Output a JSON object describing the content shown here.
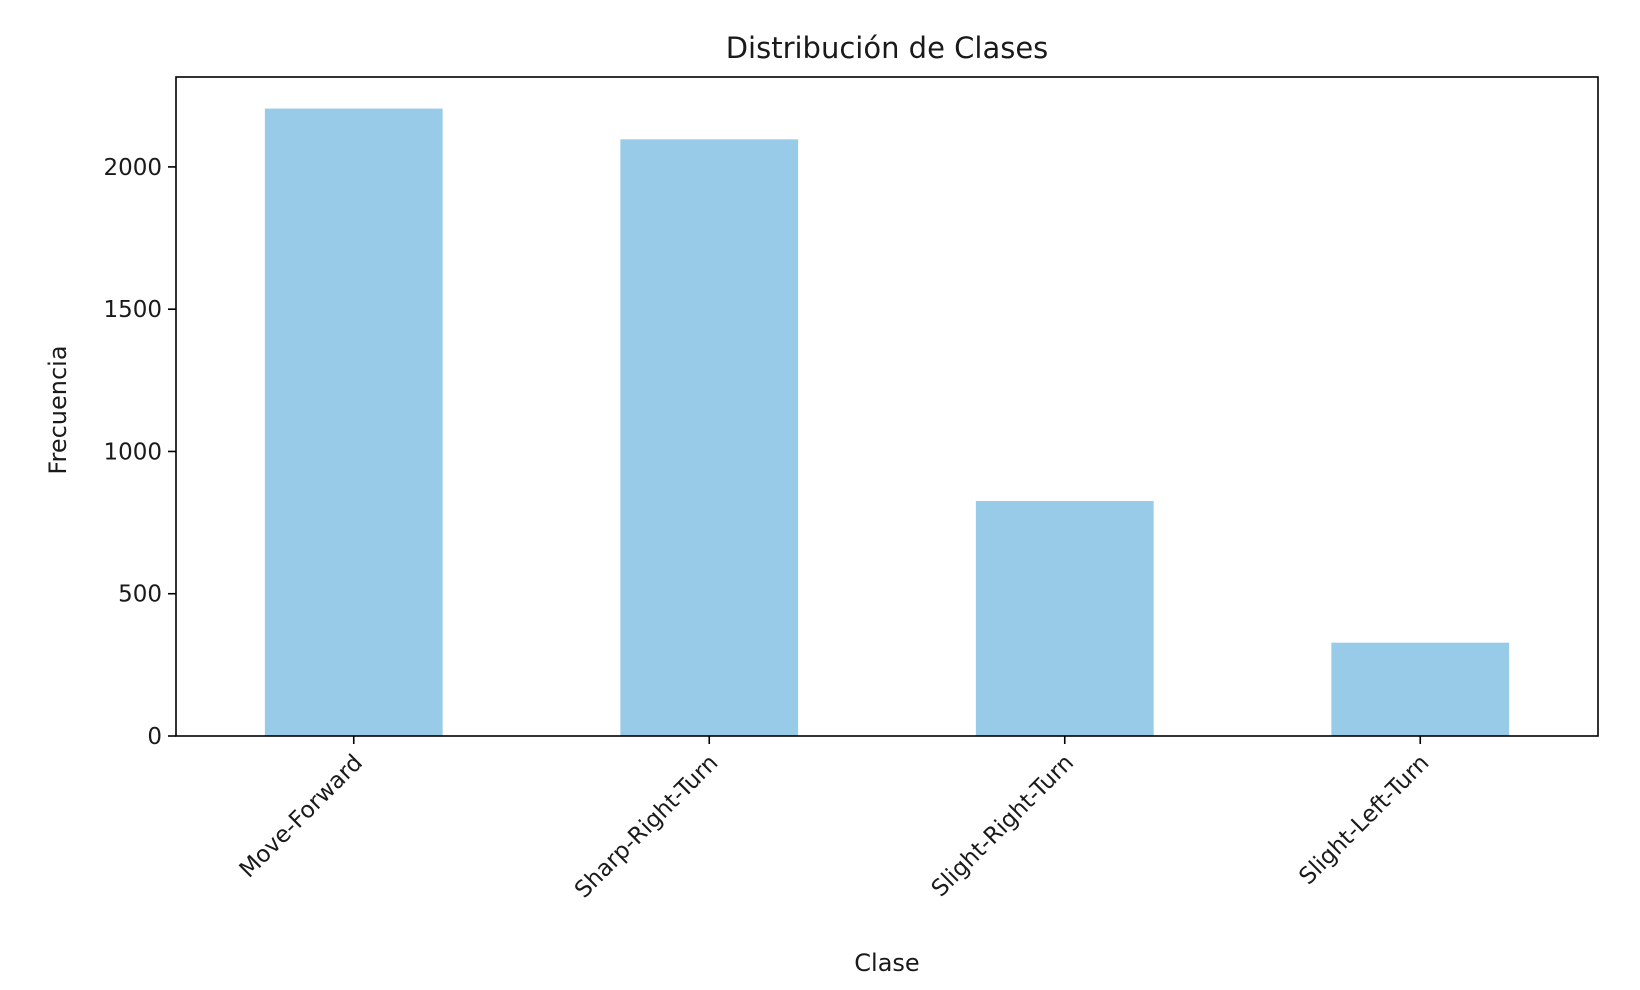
{
  "chart_data": {
    "type": "bar",
    "title": "Distribución de Clases",
    "xlabel": "Clase",
    "ylabel": "Frecuencia",
    "categories": [
      "Move-Forward",
      "Sharp-Right-Turn",
      "Slight-Right-Turn",
      "Slight-Left-Turn"
    ],
    "values": [
      2205,
      2097,
      826,
      328
    ],
    "ylim": [
      0,
      2316
    ],
    "yticks": [
      0,
      500,
      1000,
      1500,
      2000
    ],
    "bar_color": "#97cbe7",
    "grid": false,
    "legend": false
  }
}
